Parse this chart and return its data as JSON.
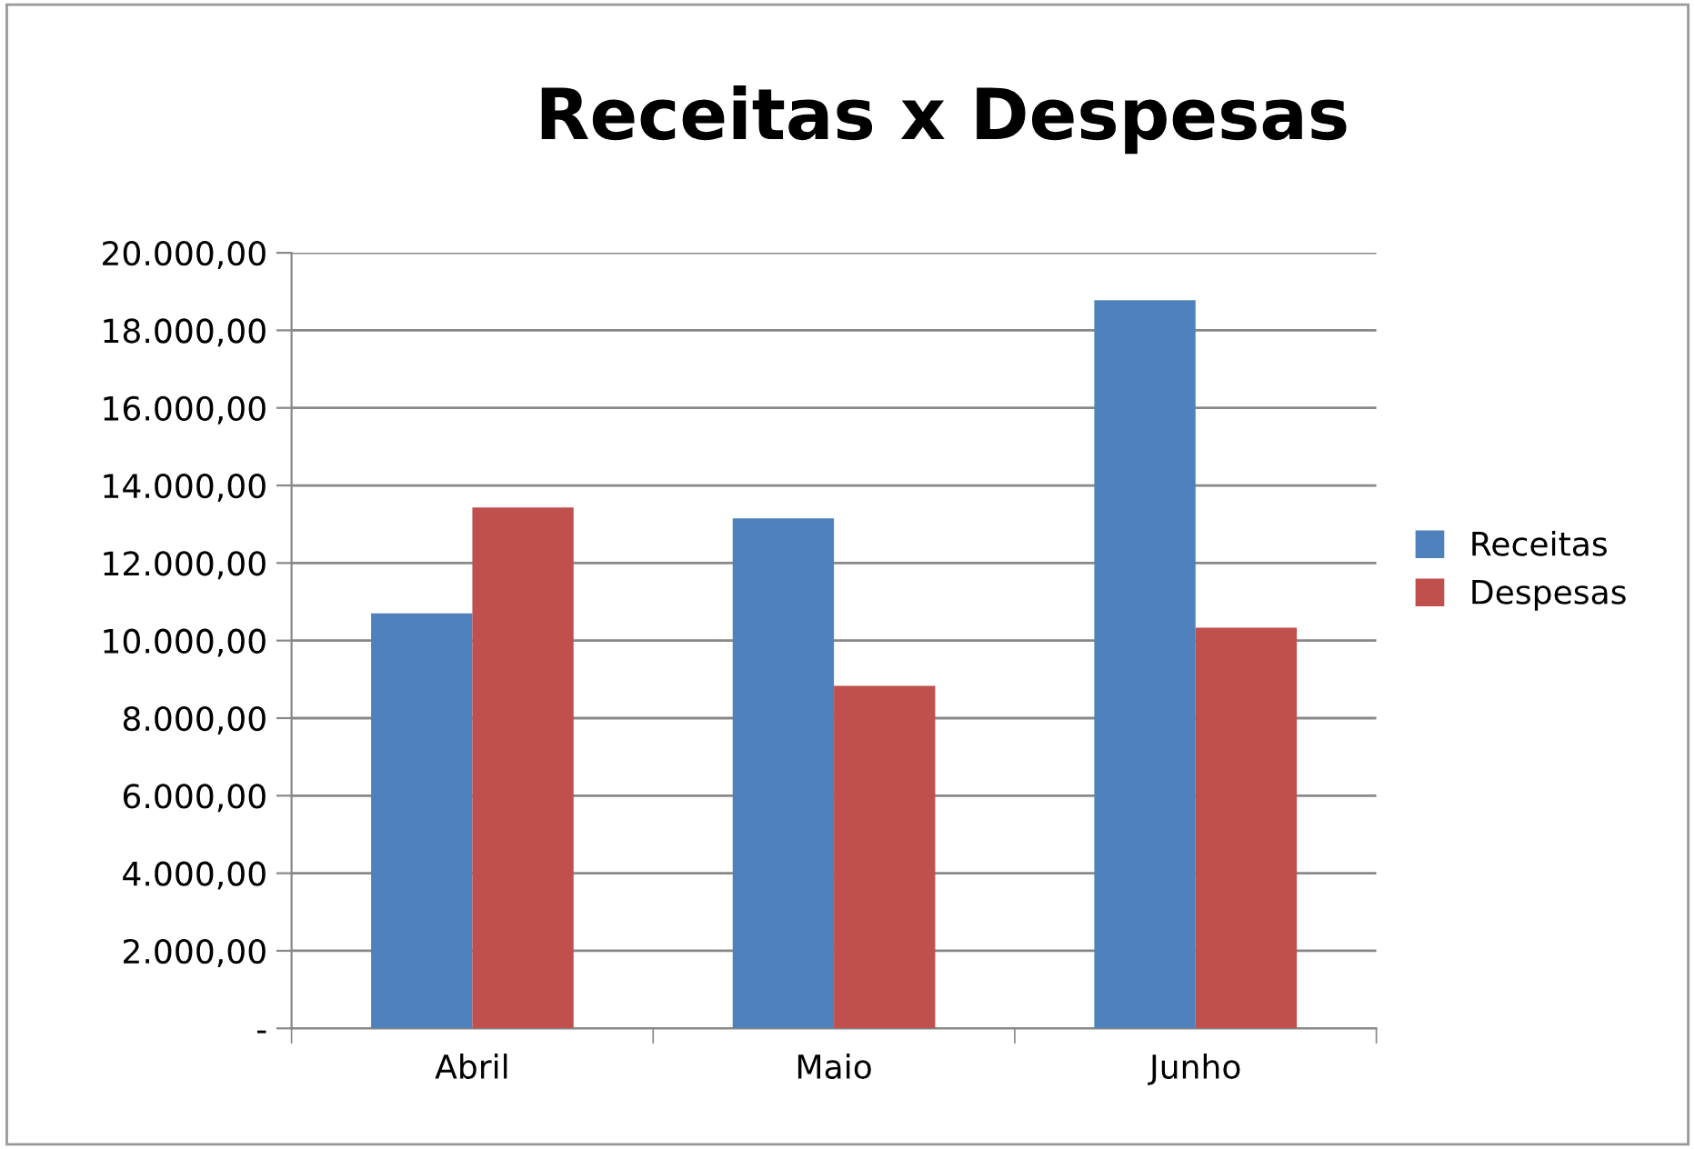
{
  "chart_data": {
    "type": "bar",
    "title": "Receitas x Despesas",
    "categories": [
      "Abril",
      "Maio",
      "Junho"
    ],
    "series": [
      {
        "name": "Receitas",
        "color": "#4f81bd",
        "values": [
          10700,
          13150,
          18780
        ]
      },
      {
        "name": "Despesas",
        "color": "#c0504d",
        "values": [
          13430,
          8830,
          10330
        ]
      }
    ],
    "ylim": [
      0,
      20000
    ],
    "yticks": [
      {
        "value": 0,
        "label": "-"
      },
      {
        "value": 2000,
        "label": "2.000,00"
      },
      {
        "value": 4000,
        "label": "4.000,00"
      },
      {
        "value": 6000,
        "label": "6.000,00"
      },
      {
        "value": 8000,
        "label": "8.000,00"
      },
      {
        "value": 10000,
        "label": "10.000,00"
      },
      {
        "value": 12000,
        "label": "12.000,00"
      },
      {
        "value": 14000,
        "label": "14.000,00"
      },
      {
        "value": 16000,
        "label": "16.000,00"
      },
      {
        "value": 18000,
        "label": "18.000,00"
      },
      {
        "value": 20000,
        "label": "20.000,00"
      }
    ],
    "grid": "y",
    "legend": "right"
  }
}
